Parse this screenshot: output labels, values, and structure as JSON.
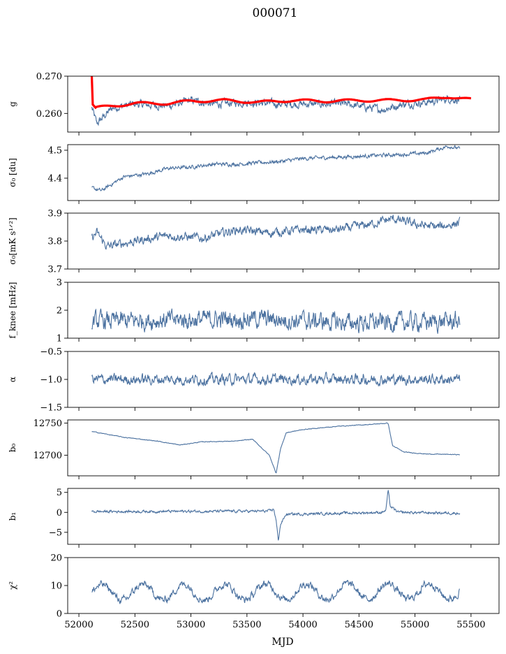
{
  "figure": {
    "title": "000071",
    "xlabel": "MJD",
    "x_ticks": [
      "52000",
      "52500",
      "53000",
      "53500",
      "54000",
      "54500",
      "55000",
      "55500"
    ],
    "xlim": [
      51900,
      55750
    ],
    "x_range": [
      52115,
      55400
    ],
    "series_color": "#4c72a0",
    "overlay_color": "#ff0000"
  },
  "chart_data": [
    {
      "type": "line",
      "ylabel": "g",
      "ylim": [
        0.255,
        0.27
      ],
      "yticks": [
        {
          "v": 0.26,
          "label": "0.260"
        },
        {
          "v": 0.27,
          "label": "0.270"
        }
      ],
      "profile": [
        [
          52115,
          0.2615
        ],
        [
          52160,
          0.2572
        ],
        [
          52200,
          0.2585
        ],
        [
          52300,
          0.2615
        ],
        [
          52500,
          0.2625
        ],
        [
          52800,
          0.262
        ],
        [
          53000,
          0.2635
        ],
        [
          53200,
          0.2625
        ],
        [
          53500,
          0.263
        ],
        [
          53800,
          0.2625
        ],
        [
          54100,
          0.2625
        ],
        [
          54400,
          0.2625
        ],
        [
          54700,
          0.261
        ],
        [
          54900,
          0.2625
        ],
        [
          55100,
          0.263
        ],
        [
          55300,
          0.264
        ],
        [
          55400,
          0.2635
        ]
      ],
      "noise": 0.0008,
      "overlay": [
        [
          52115,
          0.27
        ],
        [
          52120,
          0.2625
        ],
        [
          52150,
          0.2615
        ],
        [
          52300,
          0.262
        ],
        [
          52500,
          0.2627
        ],
        [
          52800,
          0.2627
        ],
        [
          53000,
          0.2633
        ],
        [
          53300,
          0.2635
        ],
        [
          53600,
          0.263
        ],
        [
          53900,
          0.2635
        ],
        [
          54200,
          0.2633
        ],
        [
          54500,
          0.2635
        ],
        [
          54800,
          0.2635
        ],
        [
          55100,
          0.2637
        ],
        [
          55300,
          0.2645
        ],
        [
          55500,
          0.2637
        ]
      ]
    },
    {
      "type": "line",
      "ylabel": "σ₀ [du]",
      "ylim": [
        4.32,
        4.52
      ],
      "yticks": [
        {
          "v": 4.4,
          "label": "4.4"
        },
        {
          "v": 4.5,
          "label": "4.5"
        }
      ],
      "profile": [
        [
          52115,
          4.365
        ],
        [
          52200,
          4.355
        ],
        [
          52400,
          4.405
        ],
        [
          52600,
          4.415
        ],
        [
          52800,
          4.435
        ],
        [
          53000,
          4.44
        ],
        [
          53200,
          4.45
        ],
        [
          53400,
          4.45
        ],
        [
          53600,
          4.455
        ],
        [
          53800,
          4.46
        ],
        [
          54000,
          4.47
        ],
        [
          54300,
          4.475
        ],
        [
          54600,
          4.48
        ],
        [
          54900,
          4.485
        ],
        [
          55100,
          4.49
        ],
        [
          55300,
          4.515
        ],
        [
          55400,
          4.505
        ]
      ],
      "noise": 0.005
    },
    {
      "type": "line",
      "ylabel": "σ₀[mK s¹ᐟ²]",
      "ylim": [
        3.7,
        3.9
      ],
      "yticks": [
        {
          "v": 3.7,
          "label": "3.7"
        },
        {
          "v": 3.8,
          "label": "3.8"
        },
        {
          "v": 3.9,
          "label": "3.9"
        }
      ],
      "profile": [
        [
          52115,
          3.81
        ],
        [
          52160,
          3.83
        ],
        [
          52250,
          3.78
        ],
        [
          52500,
          3.8
        ],
        [
          52800,
          3.82
        ],
        [
          53100,
          3.81
        ],
        [
          53400,
          3.84
        ],
        [
          53700,
          3.83
        ],
        [
          54000,
          3.84
        ],
        [
          54300,
          3.84
        ],
        [
          54600,
          3.86
        ],
        [
          54800,
          3.88
        ],
        [
          55000,
          3.86
        ],
        [
          55200,
          3.85
        ],
        [
          55400,
          3.865
        ]
      ],
      "noise": 0.012
    },
    {
      "type": "line",
      "ylabel": "f_knee [mHz]",
      "ylim": [
        1,
        3
      ],
      "yticks": [
        {
          "v": 1,
          "label": "1"
        },
        {
          "v": 2,
          "label": "2"
        },
        {
          "v": 3,
          "label": "3"
        }
      ],
      "profile": [
        [
          52115,
          1.6
        ],
        [
          52800,
          1.65
        ],
        [
          53600,
          1.7
        ],
        [
          54400,
          1.55
        ],
        [
          55400,
          1.6
        ]
      ],
      "noise": 0.25
    },
    {
      "type": "line",
      "ylabel": "α",
      "ylim": [
        -1.5,
        -0.5
      ],
      "yticks": [
        {
          "v": -1.5,
          "label": "−1.5"
        },
        {
          "v": -1,
          "label": "−1.0"
        },
        {
          "v": -0.5,
          "label": "−0.5"
        }
      ],
      "profile": [
        [
          52115,
          -1.0
        ],
        [
          55400,
          -1.0
        ]
      ],
      "noise": 0.07
    },
    {
      "type": "line",
      "ylabel": "b₀",
      "ylim": [
        12668,
        12755
      ],
      "yticks": [
        {
          "v": 12700,
          "label": "12700"
        },
        {
          "v": 12750,
          "label": "12750"
        }
      ],
      "profile": [
        [
          52115,
          12737
        ],
        [
          52400,
          12728
        ],
        [
          52700,
          12722
        ],
        [
          52900,
          12716
        ],
        [
          53100,
          12721
        ],
        [
          53400,
          12722
        ],
        [
          53550,
          12725
        ],
        [
          53700,
          12700
        ],
        [
          53760,
          12672
        ],
        [
          53800,
          12710
        ],
        [
          53850,
          12735
        ],
        [
          54000,
          12740
        ],
        [
          54300,
          12745
        ],
        [
          54600,
          12748
        ],
        [
          54760,
          12750
        ],
        [
          54800,
          12715
        ],
        [
          54900,
          12705
        ],
        [
          55100,
          12702
        ],
        [
          55400,
          12701
        ]
      ],
      "noise": 0.4
    },
    {
      "type": "line",
      "ylabel": "b₁",
      "ylim": [
        -8,
        6
      ],
      "yticks": [
        {
          "v": -5,
          "label": "−5"
        },
        {
          "v": 0,
          "label": "0"
        },
        {
          "v": 5,
          "label": "5"
        }
      ],
      "profile": [
        [
          52115,
          0.2
        ],
        [
          53700,
          0.3
        ],
        [
          53740,
          0.8
        ],
        [
          53760,
          -2.0
        ],
        [
          53780,
          -7.0
        ],
        [
          53800,
          -3.0
        ],
        [
          53850,
          -0.5
        ],
        [
          54700,
          0.0
        ],
        [
          54740,
          0.5
        ],
        [
          54760,
          5.5
        ],
        [
          54780,
          1.5
        ],
        [
          54850,
          0.0
        ],
        [
          55400,
          -0.2
        ]
      ],
      "noise": 0.25
    },
    {
      "type": "line",
      "ylabel": "χ²",
      "ylim": [
        0,
        20
      ],
      "yticks": [
        {
          "v": 0,
          "label": "0"
        },
        {
          "v": 10,
          "label": "10"
        },
        {
          "v": 20,
          "label": "20"
        }
      ],
      "profile": [
        [
          52115,
          7.5
        ],
        [
          55400,
          8.0
        ]
      ],
      "seasonal": 2.8,
      "period": 365,
      "noise": 1.0
    }
  ]
}
